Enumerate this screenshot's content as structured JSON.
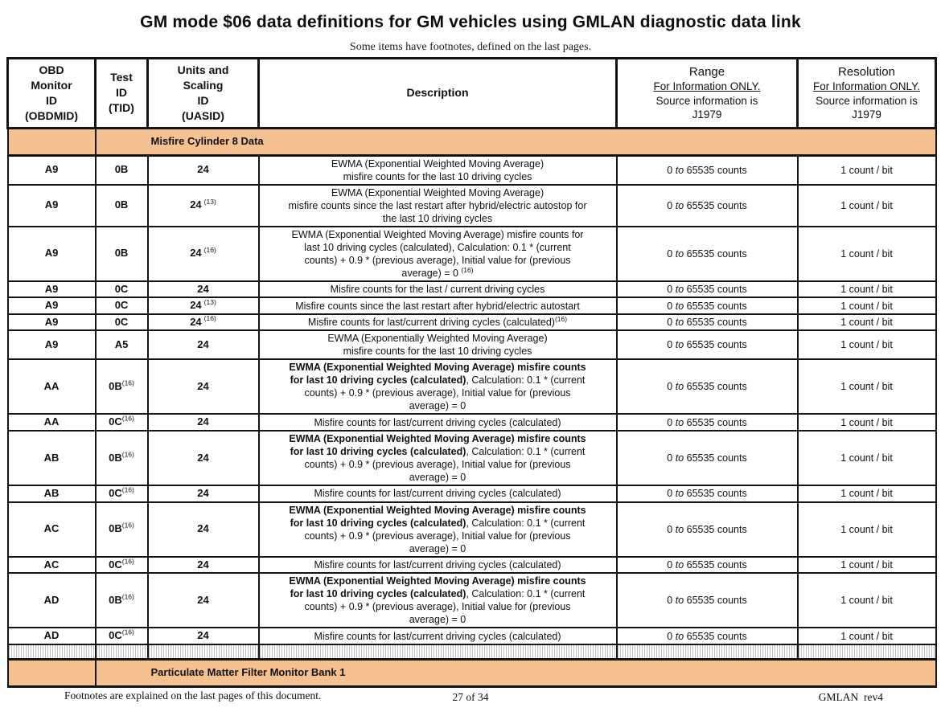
{
  "page": {
    "title": "GM mode $06 data definitions for GM vehicles using GMLAN diagnostic data link",
    "subtitle": "Some items have footnotes, defined on the last pages.",
    "footer_left": "Footnotes are explained on the last pages of this document.",
    "footer_center": "27 of 34",
    "footer_right": "GMLAN  rev4"
  },
  "colors": {
    "section_band": "#F6C191",
    "table_border": "#141414",
    "separator_stripe": "#C2C2C2"
  },
  "table": {
    "headers": {
      "obdmid": "OBD\nMonitor\nID\n(OBDMID)",
      "tid": "Test\nID\n(TID)",
      "uasid": "Units and\nScaling\nID\n(UASID)",
      "description": "Description",
      "range": {
        "title": "Range",
        "info": "For Information ONLY.",
        "source": "Source information is\nJ1979"
      },
      "resolution": {
        "title": "Resolution",
        "info": "For Information ONLY.",
        "source": "Source information is\nJ1979"
      }
    },
    "section_top": "Misfire Cylinder 8 Data",
    "section_bottom": "Particulate Matter Filter Monitor Bank 1",
    "rows": [
      {
        "obdmid": "A9",
        "tid": "0B",
        "tid_sup": "",
        "uasid": "24",
        "uasid_sup": "",
        "desc_bold": "",
        "desc": "EWMA (Exponential Weighted Moving Average)\nmisfire counts for the last 10 driving cycles",
        "desc_sup": "",
        "range": "0 to 65535 counts",
        "resolution": "1 count / bit"
      },
      {
        "obdmid": "A9",
        "tid": "0B",
        "tid_sup": "",
        "uasid": "24",
        "uasid_sup": "(13)",
        "desc_bold": "",
        "desc": "EWMA (Exponential Weighted Moving Average)\nmisfire counts since the last restart after hybrid/electric autostop for\nthe last 10 driving cycles",
        "desc_sup": "",
        "range": "0 to 65535 counts",
        "resolution": "1 count / bit"
      },
      {
        "obdmid": "A9",
        "tid": "0B",
        "tid_sup": "",
        "uasid": "24",
        "uasid_sup": "(16)",
        "desc_bold": "",
        "desc": "EWMA (Exponential Weighted Moving Average) misfire counts for\nlast 10 driving cycles (calculated), Calculation: 0.1 * (current\ncounts) + 0.9 * (previous average), Initial value for (previous\naverage) = 0 ",
        "desc_sup": "(16)",
        "range": "0 to 65535 counts",
        "resolution": "1 count / bit"
      },
      {
        "obdmid": "A9",
        "tid": "0C",
        "tid_sup": "",
        "uasid": "24",
        "uasid_sup": "",
        "desc_bold": "",
        "desc": "Misfire counts for the last / current driving cycles",
        "desc_sup": "",
        "range": "0 to 65535 counts",
        "resolution": "1 count / bit"
      },
      {
        "obdmid": "A9",
        "tid": "0C",
        "tid_sup": "",
        "uasid": "24",
        "uasid_sup": "(13)",
        "desc_bold": "",
        "desc": "Misfire counts since the last restart after hybrid/electric autostart",
        "desc_sup": "",
        "range": "0 to 65535 counts",
        "resolution": "1 count / bit"
      },
      {
        "obdmid": "A9",
        "tid": "0C",
        "tid_sup": "",
        "uasid": "24",
        "uasid_sup": "(16)",
        "desc_bold": "",
        "desc": "Misfire counts for last/current driving cycles (calculated)",
        "desc_sup": "(16)",
        "range": "0 to 65535 counts",
        "resolution": "1 count / bit"
      },
      {
        "obdmid": "A9",
        "tid": "A5",
        "tid_sup": "",
        "uasid": "24",
        "uasid_sup": "",
        "desc_bold": "",
        "desc": "EWMA (Exponentially Weighted Moving Average)\nmisfire counts for the last 10 driving cycles",
        "desc_sup": "",
        "range": "0 to 65535 counts",
        "resolution": "1 count / bit"
      },
      {
        "obdmid": "AA",
        "tid": "0B",
        "tid_sup": "(16)",
        "uasid": "24",
        "uasid_sup": "",
        "desc_bold": "EWMA (Exponential Weighted Moving Average) misfire counts\nfor last 10 driving cycles (calculated)",
        "desc": ", Calculation: 0.1 * (current\ncounts) + 0.9 * (previous average), Initial value for (previous\naverage) = 0",
        "desc_sup": "",
        "range": "0 to 65535 counts",
        "resolution": "1 count / bit"
      },
      {
        "obdmid": "AA",
        "tid": "0C",
        "tid_sup": "(16)",
        "uasid": "24",
        "uasid_sup": "",
        "desc_bold": "",
        "desc": "Misfire counts for last/current driving cycles (calculated)",
        "desc_sup": "",
        "range": "0 to 65535 counts",
        "resolution": "1 count / bit"
      },
      {
        "obdmid": "AB",
        "tid": "0B",
        "tid_sup": "(16)",
        "uasid": "24",
        "uasid_sup": "",
        "desc_bold": "EWMA (Exponential Weighted Moving Average) misfire counts\nfor last 10 driving cycles (calculated)",
        "desc": ", Calculation: 0.1 * (current\ncounts) + 0.9 * (previous average), Initial value for (previous\naverage) = 0",
        "desc_sup": "",
        "range": "0 to 65535 counts",
        "resolution": "1 count / bit"
      },
      {
        "obdmid": "AB",
        "tid": "0C",
        "tid_sup": "(16)",
        "uasid": "24",
        "uasid_sup": "",
        "desc_bold": "",
        "desc": "Misfire counts for last/current driving cycles (calculated)",
        "desc_sup": "",
        "range": "0 to 65535 counts",
        "resolution": "1 count / bit"
      },
      {
        "obdmid": "AC",
        "tid": "0B",
        "tid_sup": "(16)",
        "uasid": "24",
        "uasid_sup": "",
        "desc_bold": "EWMA (Exponential Weighted Moving Average) misfire counts\nfor last 10 driving cycles (calculated)",
        "desc": ", Calculation: 0.1 * (current\ncounts) + 0.9 * (previous average), Initial value for (previous\naverage) = 0",
        "desc_sup": "",
        "range": "0 to 65535 counts",
        "resolution": "1 count / bit"
      },
      {
        "obdmid": "AC",
        "tid": "0C",
        "tid_sup": "(16)",
        "uasid": "24",
        "uasid_sup": "",
        "desc_bold": "",
        "desc": "Misfire counts for last/current driving cycles (calculated)",
        "desc_sup": "",
        "range": "0 to 65535 counts",
        "resolution": "1 count / bit"
      },
      {
        "obdmid": "AD",
        "tid": "0B",
        "tid_sup": "(16)",
        "uasid": "24",
        "uasid_sup": "",
        "desc_bold": "EWMA (Exponential Weighted Moving Average) misfire counts\nfor last 10 driving cycles (calculated)",
        "desc": ", Calculation: 0.1 * (current\ncounts) + 0.9 * (previous average), Initial value for (previous\naverage) = 0",
        "desc_sup": "",
        "range": "0 to 65535 counts",
        "resolution": "1 count / bit"
      },
      {
        "obdmid": "AD",
        "tid": "0C",
        "tid_sup": "(16)",
        "uasid": "24",
        "uasid_sup": "",
        "desc_bold": "",
        "desc": "Misfire counts for last/current driving cycles (calculated)",
        "desc_sup": "",
        "range": "0 to 65535 counts",
        "resolution": "1 count / bit"
      }
    ]
  }
}
